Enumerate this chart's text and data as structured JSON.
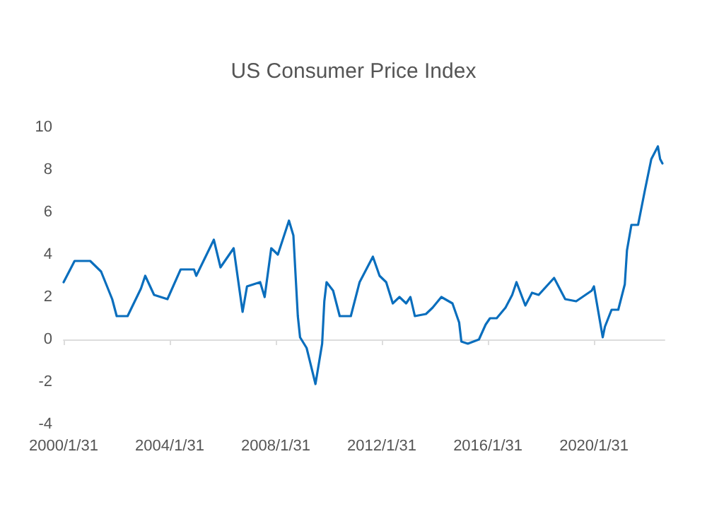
{
  "chart_data": {
    "type": "line",
    "title": "US Consumer Price Index",
    "x": [
      "2000-01-31",
      "2000-06-30",
      "2001-01-31",
      "2001-06-30",
      "2001-11-30",
      "2002-01-31",
      "2002-06-30",
      "2002-12-31",
      "2003-02-28",
      "2003-06-30",
      "2003-12-31",
      "2004-06-30",
      "2004-12-31",
      "2005-01-31",
      "2005-09-30",
      "2005-12-31",
      "2006-06-30",
      "2006-10-31",
      "2006-12-31",
      "2007-06-30",
      "2007-08-31",
      "2007-11-30",
      "2008-02-29",
      "2008-07-31",
      "2008-09-30",
      "2008-11-30",
      "2008-12-31",
      "2009-03-31",
      "2009-07-31",
      "2009-10-31",
      "2009-11-30",
      "2009-12-31",
      "2010-03-31",
      "2010-06-30",
      "2010-11-30",
      "2011-03-31",
      "2011-09-30",
      "2011-12-31",
      "2012-03-31",
      "2012-06-30",
      "2012-09-30",
      "2012-12-31",
      "2013-02-28",
      "2013-04-30",
      "2013-09-30",
      "2013-12-31",
      "2014-04-30",
      "2014-09-30",
      "2014-12-31",
      "2015-01-31",
      "2015-04-30",
      "2015-09-30",
      "2015-12-31",
      "2016-02-29",
      "2016-05-31",
      "2016-09-30",
      "2016-12-31",
      "2017-02-28",
      "2017-06-30",
      "2017-09-30",
      "2017-12-31",
      "2018-07-31",
      "2018-12-31",
      "2019-05-31",
      "2019-12-31",
      "2020-01-31",
      "2020-05-31",
      "2020-06-30",
      "2020-09-30",
      "2020-12-31",
      "2021-03-31",
      "2021-04-30",
      "2021-06-30",
      "2021-09-30",
      "2021-12-31",
      "2022-03-31",
      "2022-06-30",
      "2022-07-31",
      "2022-08-31"
    ],
    "series": [
      {
        "color": "#0a6ebd",
        "values": [
          2.7,
          3.7,
          3.7,
          3.2,
          1.9,
          1.1,
          1.1,
          2.4,
          3.0,
          2.1,
          1.9,
          3.3,
          3.3,
          3.0,
          4.7,
          3.4,
          4.3,
          1.3,
          2.5,
          2.7,
          2.0,
          4.3,
          4.0,
          5.6,
          4.9,
          1.1,
          0.1,
          -0.4,
          -2.1,
          -0.2,
          1.8,
          2.7,
          2.3,
          1.1,
          1.1,
          2.7,
          3.9,
          3.0,
          2.7,
          1.7,
          2.0,
          1.7,
          2.0,
          1.1,
          1.2,
          1.5,
          2.0,
          1.7,
          0.8,
          -0.1,
          -0.2,
          0.0,
          0.7,
          1.0,
          1.0,
          1.5,
          2.1,
          2.7,
          1.6,
          2.2,
          2.1,
          2.9,
          1.9,
          1.8,
          2.3,
          2.5,
          0.1,
          0.6,
          1.4,
          1.4,
          2.6,
          4.2,
          5.4,
          5.4,
          7.0,
          8.5,
          9.1,
          8.5,
          8.3
        ]
      }
    ],
    "ylim": [
      -4,
      10
    ],
    "yticks": [
      -4,
      -2,
      0,
      2,
      4,
      6,
      8,
      10
    ],
    "xlim": [
      "2000-01-31",
      "2022-09-30"
    ],
    "xticks": [
      {
        "value": "2000-01-31",
        "label": "2000/1/31"
      },
      {
        "value": "2004-01-31",
        "label": "2004/1/31"
      },
      {
        "value": "2008-01-31",
        "label": "2008/1/31"
      },
      {
        "value": "2012-01-31",
        "label": "2012/1/31"
      },
      {
        "value": "2016-01-31",
        "label": "2016/1/31"
      },
      {
        "value": "2020-01-31",
        "label": "2020/1/31"
      }
    ],
    "marker": "none",
    "line_style": "solid"
  }
}
